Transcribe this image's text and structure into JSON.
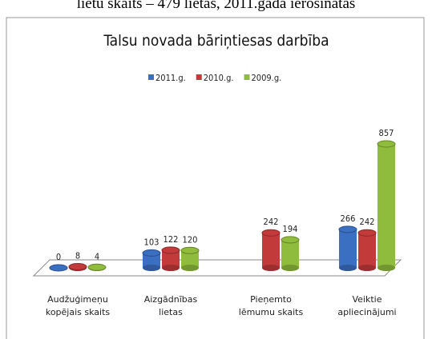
{
  "page_text": "lietu skaits – 479 lietas, 2011.gada ierosinātas",
  "chart_data": {
    "type": "bar3d",
    "title": "Talsu novada bāriņtiesas darbība",
    "categories": [
      "Audžuģimeņu kopējais skaits",
      "Aizgādnības lietas",
      "Pieņemto lēmumu skaits",
      "Veiktie apliecinājumi"
    ],
    "series": [
      {
        "name": "2011.g.",
        "color": "#3b6fc2",
        "values": [
          0,
          103,
          null,
          266
        ]
      },
      {
        "name": "2010.g.",
        "color": "#c23a3a",
        "values": [
          8,
          122,
          242,
          242
        ]
      },
      {
        "name": "2009.g.",
        "color": "#8fbc3c",
        "values": [
          4,
          120,
          194,
          857
        ]
      }
    ],
    "legend": "top"
  }
}
